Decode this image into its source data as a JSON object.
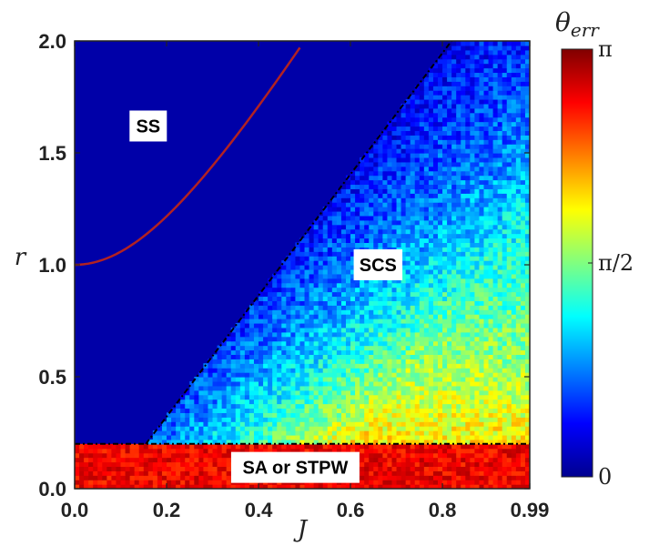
{
  "chart_data": {
    "type": "heatmap",
    "xlabel": "J",
    "ylabel": "r",
    "xlim": [
      0,
      0.99
    ],
    "ylim": [
      0,
      2.0
    ],
    "x_ticks": [
      "0.0",
      "0.2",
      "0.4",
      "0.6",
      "0.8",
      "0.99"
    ],
    "x_tick_values": [
      0,
      0.2,
      0.4,
      0.6,
      0.8,
      0.99
    ],
    "y_ticks": [
      "0.0",
      "0.5",
      "1.0",
      "1.5",
      "2.0"
    ],
    "y_tick_values": [
      0,
      0.5,
      1.0,
      1.5,
      2.0
    ],
    "colorbar": {
      "label": "θerr",
      "label_base": "θ",
      "label_sub": "err",
      "ticks": [
        "0",
        "π/2",
        "π"
      ],
      "tick_values": [
        0,
        1.5708,
        3.1416
      ],
      "range": [
        0,
        3.1416
      ],
      "colormap": "jet"
    },
    "regions": [
      {
        "label": "SS",
        "x": 0.16,
        "y": 1.62
      },
      {
        "label": "SCS",
        "x": 0.66,
        "y": 1.0
      },
      {
        "label": "SA or STPW",
        "x": 0.48,
        "y": 0.095
      }
    ],
    "boundaries": [
      {
        "style": "dash-dot",
        "color": "#000000",
        "points": [
          [
            0.0,
            0.2
          ],
          [
            0.99,
            0.2
          ]
        ]
      },
      {
        "style": "dash-dot",
        "color": "#000000",
        "points": [
          [
            0.155,
            0.2
          ],
          [
            0.82,
            2.0
          ]
        ]
      },
      {
        "style": "solid",
        "color": "#b22222",
        "equation": "r = sqrt(1 + 12 J^2)",
        "points": [
          [
            0.0,
            1.0
          ],
          [
            0.5,
            2.0
          ]
        ]
      }
    ],
    "grid": false,
    "legend": "none"
  }
}
